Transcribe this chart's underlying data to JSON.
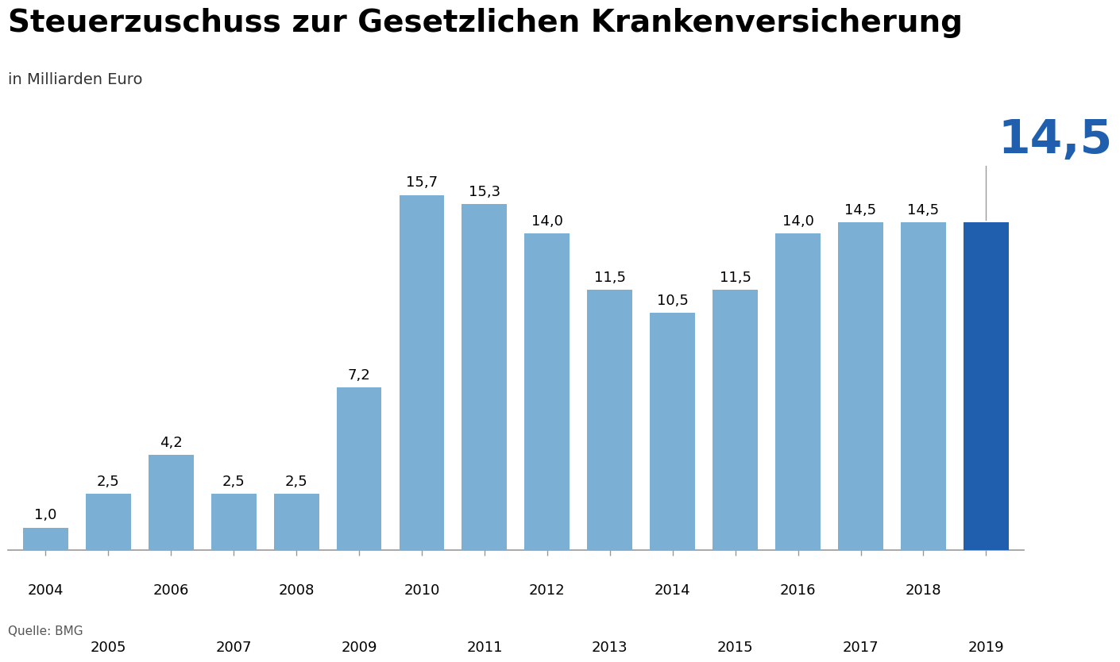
{
  "title": "Steuerzuschuss zur Gesetzlichen Krankenversicherung",
  "subtitle": "in Milliarden Euro",
  "source": "Quelle: BMG",
  "years": [
    2004,
    2005,
    2006,
    2007,
    2008,
    2009,
    2010,
    2011,
    2012,
    2013,
    2014,
    2015,
    2016,
    2017,
    2018,
    2019
  ],
  "values": [
    1.0,
    2.5,
    4.2,
    2.5,
    2.5,
    7.2,
    15.7,
    15.3,
    14.0,
    11.5,
    10.5,
    11.5,
    14.0,
    14.5,
    14.5,
    14.5
  ],
  "bar_color_default": "#7BAFD4",
  "bar_color_highlight": "#1F5FAD",
  "highlight_index": 15,
  "highlight_label_color": "#1F5FAD",
  "highlight_value": "14,5",
  "background_color": "#FFFFFF",
  "title_fontsize": 28,
  "subtitle_fontsize": 14,
  "label_fontsize": 13,
  "source_fontsize": 11,
  "tick_fontsize": 13,
  "highlight_fontsize": 42,
  "ylim": [
    0,
    18
  ],
  "bar_width": 0.72
}
